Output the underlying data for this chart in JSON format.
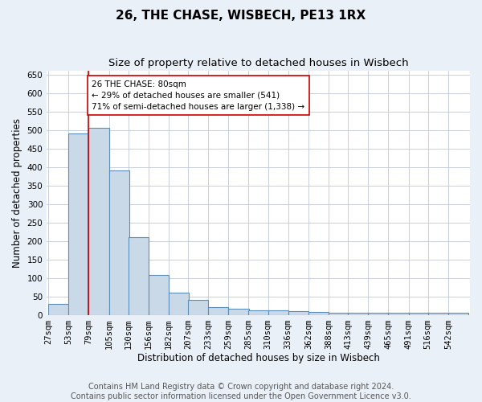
{
  "title": "26, THE CHASE, WISBECH, PE13 1RX",
  "subtitle": "Size of property relative to detached houses in Wisbech",
  "xlabel": "Distribution of detached houses by size in Wisbech",
  "ylabel": "Number of detached properties",
  "footer_line1": "Contains HM Land Registry data © Crown copyright and database right 2024.",
  "footer_line2": "Contains public sector information licensed under the Open Government Licence v3.0.",
  "bins": [
    27,
    53,
    79,
    105,
    130,
    156,
    182,
    207,
    233,
    259,
    285,
    310,
    336,
    362,
    388,
    413,
    439,
    465,
    491,
    516,
    542
  ],
  "values": [
    30,
    490,
    505,
    390,
    210,
    108,
    60,
    40,
    20,
    17,
    13,
    12,
    10,
    8,
    5,
    5,
    5,
    5,
    5,
    5,
    5
  ],
  "bar_color": "#c9d9e8",
  "bar_edge_color": "#5b8db8",
  "bar_edge_width": 0.8,
  "vline_x": 79,
  "vline_color": "#cc0000",
  "annotation_text": "26 THE CHASE: 80sqm\n← 29% of detached houses are smaller (541)\n71% of semi-detached houses are larger (1,338) →",
  "annotation_box_color": "#cc0000",
  "ylim": [
    0,
    660
  ],
  "yticks": [
    0,
    50,
    100,
    150,
    200,
    250,
    300,
    350,
    400,
    450,
    500,
    550,
    600,
    650
  ],
  "bg_color": "#eaf0f8",
  "plot_bg_color": "#ffffff",
  "grid_color": "#c0c8d8",
  "title_fontsize": 11,
  "subtitle_fontsize": 9.5,
  "axis_label_fontsize": 8.5,
  "tick_fontsize": 7.5,
  "footer_fontsize": 7,
  "annotation_fontsize": 7.5
}
